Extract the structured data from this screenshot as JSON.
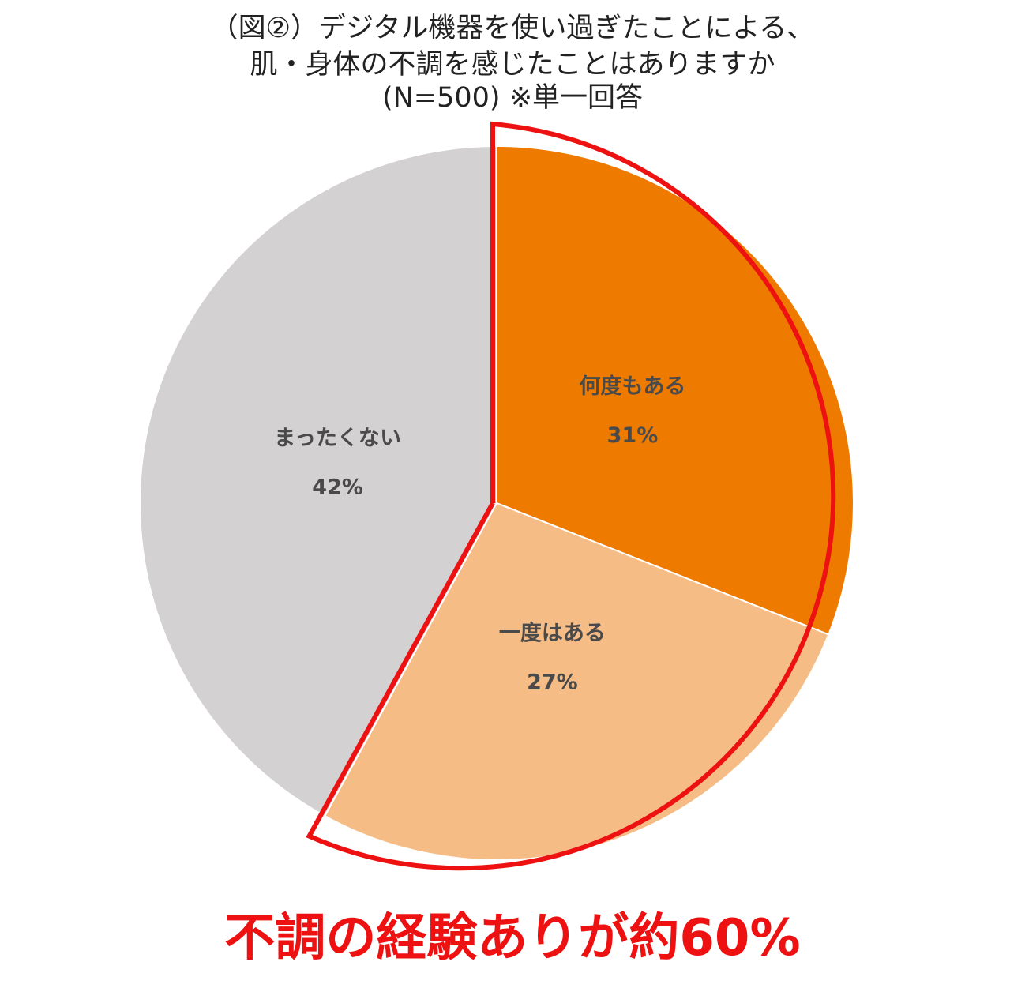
{
  "title": {
    "line1": "（図②）デジタル機器を使い過ぎたことによる、",
    "line2": "肌・身体の不調を感じたことはありますか",
    "line3": "(N=500) ※単一回答"
  },
  "chart_data": {
    "type": "pie",
    "title": "（図②）デジタル機器を使い過ぎたことによる、肌・身体の不調を感じたことはありますか (N=500) ※単一回答",
    "start_angle": "12 o'clock",
    "direction": "clockwise",
    "slices": [
      {
        "label": "何度もある",
        "value": 31,
        "value_label": "31%",
        "color": "#ee7b00"
      },
      {
        "label": "一度はある",
        "value": 27,
        "value_label": "27%",
        "color": "#f6bc86"
      },
      {
        "label": "まったくない",
        "value": 42,
        "value_label": "42%",
        "color": "#d3d1d2"
      }
    ],
    "highlight": {
      "slices": [
        "何度もある",
        "一度はある"
      ],
      "outline_color": "#ee1111"
    }
  },
  "callout": {
    "text": "不調の経験ありが約60%",
    "color": "#ee1111"
  }
}
